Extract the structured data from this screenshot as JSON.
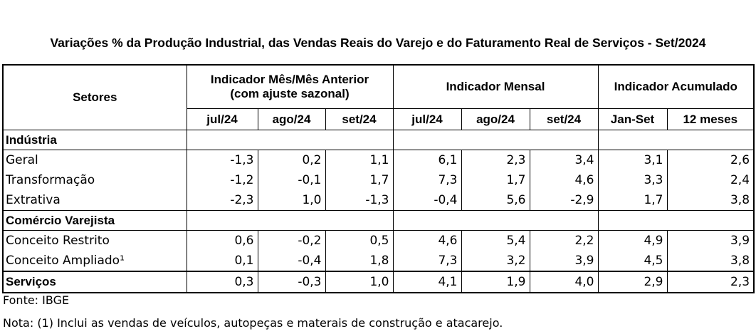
{
  "title": "Variações % da Produção Industrial, das Vendas Reais do Varejo e do Faturamento Real de Serviços - Set/2024",
  "header": {
    "setores": "Setores",
    "group1_line1": "Indicador Mês/Mês Anterior",
    "group1_line2": "(com ajuste sazonal)",
    "group2": "Indicador Mensal",
    "group3": "Indicador Acumulado",
    "months": [
      "jul/24",
      "ago/24",
      "set/24",
      "jul/24",
      "ago/24",
      "set/24",
      "Jan-Set",
      "12 meses"
    ]
  },
  "sections": [
    {
      "name": "Indústria",
      "rows": [
        {
          "label": "Geral",
          "values": [
            "-1,3",
            "0,2",
            "1,1",
            "6,1",
            "2,3",
            "3,4",
            "3,1",
            "2,6"
          ]
        },
        {
          "label": "Transformação",
          "values": [
            "-1,2",
            "-0,1",
            "1,7",
            "7,3",
            "1,7",
            "4,6",
            "3,3",
            "2,4"
          ]
        },
        {
          "label": "Extrativa",
          "values": [
            "-2,3",
            "1,0",
            "-1,3",
            "-0,4",
            "5,6",
            "-2,9",
            "1,7",
            "3,8"
          ]
        }
      ]
    },
    {
      "name": "Comércio Varejista",
      "rows": [
        {
          "label": "Conceito Restrito",
          "values": [
            "0,6",
            "-0,2",
            "0,5",
            "4,6",
            "5,4",
            "2,2",
            "4,9",
            "3,9"
          ]
        },
        {
          "label": "Conceito Ampliado¹",
          "values": [
            "0,1",
            "-0,4",
            "1,8",
            "7,3",
            "3,2",
            "3,9",
            "4,5",
            "3,8"
          ]
        }
      ]
    }
  ],
  "servicos": {
    "label": "Serviços",
    "values": [
      "0,3",
      "-0,3",
      "1,0",
      "4,1",
      "1,9",
      "4,0",
      "2,9",
      "2,3"
    ]
  },
  "footer": {
    "fonte": "Fonte: IBGE",
    "nota": "Nota: (1) Inclui as vendas de veículos, autopeças e materais de construção e atacarejo."
  }
}
